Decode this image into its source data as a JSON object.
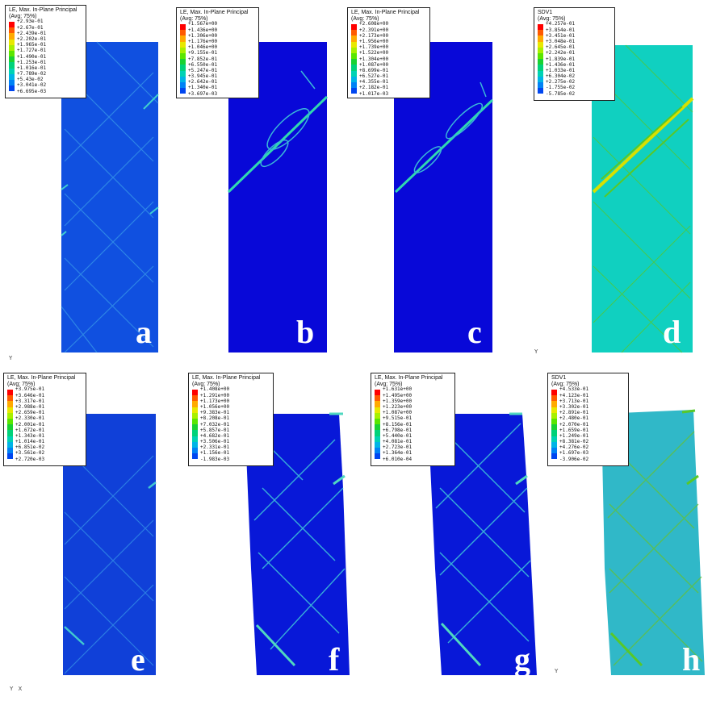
{
  "figure": {
    "triad_top_left": "Y",
    "triad_top_right": "Y",
    "triad_bottom_mid": "Y",
    "triad_bottom_left": "Y",
    "triad_bottom_left_x": "X"
  },
  "legend_colors": [
    "#ff0000",
    "#ff5a00",
    "#ffaa00",
    "#e8e800",
    "#a8f000",
    "#5ae600",
    "#19d232",
    "#00d27a",
    "#00d2b4",
    "#00b4e6",
    "#0082f5",
    "#0046f0",
    "#0000e6"
  ],
  "panels": [
    {
      "id": "a",
      "letter": "a",
      "bg": "#1050e0",
      "accent": "#40d0d0",
      "title": [
        "LE, Max. In-Plane Principal",
        "(Avg: 75%)"
      ],
      "values": [
        "+2.93e-01",
        "+2.67e-01",
        "+2.439e-01",
        "+2.202e-01",
        "+1.965e-01",
        "+1.727e-01",
        "+1.490e-01",
        "+1.253e-01",
        "+1.016e-01",
        "+7.789e-02",
        "+5.43e-02",
        "+3.041e-02",
        "+6.695e-03"
      ]
    },
    {
      "id": "b",
      "letter": "b",
      "bg": "#0808d8",
      "accent": "#30d8b0",
      "title": [
        "LE, Max. In-Plane Principal",
        "(Avg: 75%)"
      ],
      "values": [
        "+1.567e+00",
        "+1.436e+00",
        "+1.306e+00",
        "+1.176e+00",
        "+1.046e+00",
        "+9.155e-01",
        "+7.852e-01",
        "+6.550e-01",
        "+5.247e-01",
        "+3.945e-01",
        "+2.642e-01",
        "+1.340e-01",
        "+3.697e-03"
      ]
    },
    {
      "id": "c",
      "letter": "c",
      "bg": "#0808d8",
      "accent": "#30d8b0",
      "title": [
        "LE, Max. In-Plane Principal",
        "(Avg: 75%)"
      ],
      "values": [
        "+2.608e+00",
        "+2.391e+00",
        "+2.173e+00",
        "+1.956e+00",
        "+1.739e+00",
        "+1.522e+00",
        "+1.304e+00",
        "+1.087e+00",
        "+8.699e-01",
        "+6.527e-01",
        "+4.355e-01",
        "+2.182e-01",
        "+1.017e-03"
      ]
    },
    {
      "id": "d",
      "letter": "d",
      "bg": "#10d0c0",
      "accent": "#50c020",
      "title": [
        "SDV1",
        "(Avg: 75%)"
      ],
      "values": [
        "+4.257e-01",
        "+3.854e-01",
        "+3.451e-01",
        "+3.048e-01",
        "+2.645e-01",
        "+2.242e-01",
        "+1.839e-01",
        "+1.436e-01",
        "+1.033e-01",
        "+6.304e-02",
        "+2.275e-02",
        "-1.755e-02",
        "-5.785e-02"
      ]
    },
    {
      "id": "e",
      "letter": "e",
      "bg": "#1040d8",
      "accent": "#40c8d0",
      "title": [
        "LE, Max. In-Plane Principal",
        "(Avg: 75%)"
      ],
      "values": [
        "+3.975e-01",
        "+3.646e-01",
        "+3.317e-01",
        "+2.988e-01",
        "+2.659e-01",
        "+2.330e-01",
        "+2.001e-01",
        "+1.672e-01",
        "+1.343e-01",
        "+1.014e-01",
        "+6.851e-02",
        "+3.561e-02",
        "+2.720e-03"
      ]
    },
    {
      "id": "f",
      "letter": "f",
      "bg": "#0818d8",
      "accent": "#40d0d0",
      "title": [
        "LE, Max. In-Plane Principal",
        "(Avg: 75%)"
      ],
      "values": [
        "+1.408e+00",
        "+1.291e+00",
        "+1.173e+00",
        "+1.056e+00",
        "+9.383e-01",
        "+8.208e-01",
        "+7.032e-01",
        "+5.857e-01",
        "+4.682e-01",
        "+3.506e-01",
        "+2.331e-01",
        "+1.156e-01",
        "-1.983e-03"
      ]
    },
    {
      "id": "g",
      "letter": "g",
      "bg": "#0818d8",
      "accent": "#40d0d0",
      "title": [
        "LE, Max. In-Plane Principal",
        "(Avg: 75%)"
      ],
      "values": [
        "+1.631e+00",
        "+1.495e+00",
        "+1.359e+00",
        "+1.223e+00",
        "+1.087e+00",
        "+9.515e-01",
        "+8.156e-01",
        "+6.798e-01",
        "+5.440e-01",
        "+4.081e-01",
        "+2.723e-01",
        "+1.364e-01",
        "+6.010e-04"
      ]
    },
    {
      "id": "h",
      "letter": "h",
      "bg": "#30b8c8",
      "accent": "#60c040",
      "title": [
        "SDV1",
        "(Avg: 75%)"
      ],
      "values": [
        "+4.533e-01",
        "+4.123e-01",
        "+3.713e-01",
        "+3.302e-01",
        "+2.891e-01",
        "+2.480e-01",
        "+2.070e-01",
        "+1.659e-01",
        "+1.249e-01",
        "+8.381e-02",
        "+4.276e-02",
        "+1.697e-03",
        "-3.906e-02"
      ]
    }
  ]
}
